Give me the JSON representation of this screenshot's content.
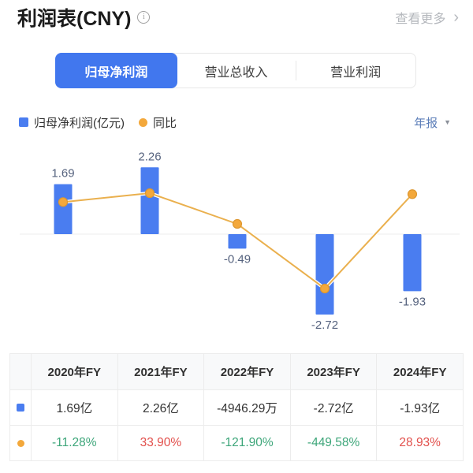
{
  "header": {
    "title": "利润表(CNY)",
    "more_label": "查看更多"
  },
  "icons": {
    "info": "i",
    "chevron_right": "›",
    "dropdown_arrow": "▼"
  },
  "tabs": [
    {
      "label": "归母净利润",
      "active": true
    },
    {
      "label": "营业总收入",
      "active": false
    },
    {
      "label": "营业利润",
      "active": false
    }
  ],
  "legend": {
    "bar_label": "归母净利润(亿元)",
    "line_label": "同比",
    "period_label": "年报"
  },
  "colors": {
    "tab_blue": "#4177ee",
    "bar_blue": "#4a7df0",
    "line_orange": "#eab04e",
    "dot_orange": "#f3a83b",
    "dot_stroke": "#dd9730",
    "chart_label": "#55627e",
    "down_green": "#3ea67a",
    "up_red": "#e2504c",
    "period_blue": "#5b7db8"
  },
  "chart_data": {
    "type": "bar+line",
    "categories": [
      "2020年FY",
      "2021年FY",
      "2022年FY",
      "2023年FY",
      "2024年FY"
    ],
    "series": [
      {
        "name": "归母净利润(亿元)",
        "type": "bar",
        "values": [
          1.69,
          2.26,
          -0.49,
          -2.72,
          -1.93
        ],
        "labels": [
          "1.69",
          "2.26",
          "-0.49",
          "-2.72",
          "-1.93"
        ],
        "color": "#4a7df0"
      },
      {
        "name": "同比",
        "type": "line",
        "unit": "%",
        "values": [
          -11.28,
          33.9,
          -121.9,
          -449.58,
          28.93
        ],
        "color": "#eab04e"
      }
    ],
    "title": "",
    "xlabel": "",
    "ylabel": "",
    "grid": false,
    "baseline": 0,
    "legend_position": "top-left"
  },
  "table": {
    "headers": [
      "",
      "2020年FY",
      "2021年FY",
      "2022年FY",
      "2023年FY",
      "2024年FY"
    ],
    "rows": [
      {
        "marker": "net-profit",
        "cells": [
          "1.69亿",
          "2.26亿",
          "-4946.29万",
          "-2.72亿",
          "-1.93亿"
        ],
        "colors": [
          "dark",
          "dark",
          "dark",
          "dark",
          "dark"
        ]
      },
      {
        "marker": "yoy",
        "cells": [
          "-11.28%",
          "33.90%",
          "-121.90%",
          "-449.58%",
          "28.93%"
        ],
        "colors": [
          "green",
          "red",
          "green",
          "green",
          "red"
        ]
      }
    ]
  }
}
